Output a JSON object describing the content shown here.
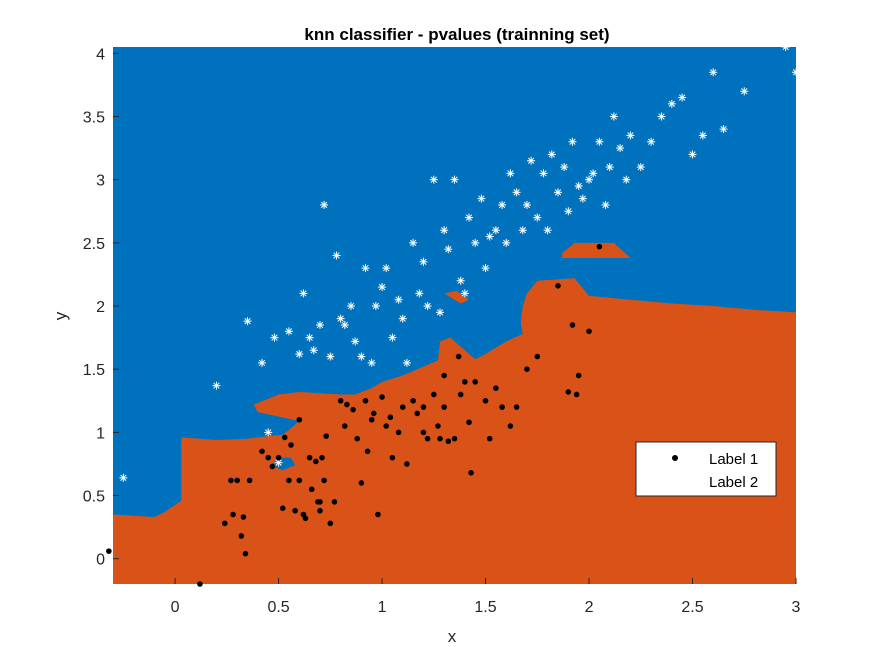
{
  "chart_data": {
    "type": "scatter",
    "title": "knn classifier - pvalues (trainning set)",
    "xlabel": "x",
    "ylabel": "y",
    "xlim": [
      -0.3,
      3.0
    ],
    "ylim": [
      -0.2,
      4.05
    ],
    "xticks": [
      "0",
      "0.5",
      "1",
      "1.5",
      "2",
      "2.5",
      "3"
    ],
    "yticks": [
      "0",
      "0.5",
      "1",
      "1.5",
      "2",
      "2.5",
      "3",
      "3.5",
      "4"
    ],
    "grid": false,
    "legend_position": "right",
    "region_colors": {
      "label_1": "#D95319",
      "label_2": "#0072BD"
    },
    "decision_boundary_label1_region": [
      [
        -0.3,
        0.35
      ],
      [
        -0.1,
        0.33
      ],
      [
        -0.05,
        0.37
      ],
      [
        0.03,
        0.46
      ],
      [
        0.03,
        0.96
      ],
      [
        0.2,
        0.94
      ],
      [
        0.35,
        0.95
      ],
      [
        0.45,
        0.97
      ],
      [
        0.52,
        0.98
      ],
      [
        0.55,
        1.02
      ],
      [
        0.6,
        1.09
      ],
      [
        0.4,
        1.16
      ],
      [
        0.38,
        1.22
      ],
      [
        0.5,
        1.3
      ],
      [
        0.6,
        1.32
      ],
      [
        0.8,
        1.3
      ],
      [
        0.87,
        1.3
      ],
      [
        0.95,
        1.35
      ],
      [
        1.0,
        1.4
      ],
      [
        1.1,
        1.45
      ],
      [
        1.2,
        1.52
      ],
      [
        1.27,
        1.57
      ],
      [
        1.28,
        1.72
      ],
      [
        1.33,
        1.75
      ],
      [
        1.4,
        1.65
      ],
      [
        1.45,
        1.58
      ],
      [
        1.5,
        1.62
      ],
      [
        1.6,
        1.72
      ],
      [
        1.68,
        1.78
      ],
      [
        1.67,
        1.87
      ],
      [
        1.68,
        2.0
      ],
      [
        1.7,
        2.1
      ],
      [
        1.75,
        2.2
      ],
      [
        1.93,
        2.22
      ],
      [
        2.0,
        2.08
      ],
      [
        2.2,
        2.05
      ],
      [
        2.4,
        2.02
      ],
      [
        2.6,
        2.0
      ],
      [
        2.8,
        1.97
      ],
      [
        3.0,
        1.95
      ],
      [
        3.0,
        -0.2
      ],
      [
        -0.3,
        -0.2
      ]
    ],
    "series": [
      {
        "name": "Label 1",
        "marker": "dot",
        "color": "#000000",
        "x": [
          -0.32,
          0.12,
          0.24,
          0.27,
          0.28,
          0.3,
          0.32,
          0.33,
          0.34,
          0.36,
          0.42,
          0.45,
          0.47,
          0.5,
          0.52,
          0.53,
          0.55,
          0.56,
          0.58,
          0.6,
          0.6,
          0.62,
          0.63,
          0.65,
          0.66,
          0.68,
          0.69,
          0.7,
          0.7,
          0.71,
          0.72,
          0.73,
          0.75,
          0.77,
          0.8,
          0.82,
          0.83,
          0.86,
          0.88,
          0.9,
          0.92,
          0.93,
          0.95,
          0.96,
          0.98,
          1.0,
          1.02,
          1.04,
          1.05,
          1.08,
          1.1,
          1.12,
          1.15,
          1.17,
          1.2,
          1.2,
          1.22,
          1.25,
          1.27,
          1.28,
          1.3,
          1.3,
          1.32,
          1.35,
          1.37,
          1.38,
          1.4,
          1.42,
          1.43,
          1.45,
          1.5,
          1.52,
          1.55,
          1.58,
          1.62,
          1.65,
          1.7,
          1.75,
          1.85,
          1.9,
          1.92,
          1.94,
          1.95,
          2.0,
          2.05
        ],
        "y": [
          0.06,
          -0.2,
          0.28,
          0.62,
          0.35,
          0.62,
          0.18,
          0.33,
          0.04,
          0.62,
          0.85,
          0.8,
          0.73,
          0.8,
          0.4,
          0.96,
          0.62,
          0.9,
          0.38,
          0.62,
          1.1,
          0.35,
          0.32,
          0.8,
          0.55,
          0.77,
          0.45,
          0.38,
          0.45,
          0.8,
          0.62,
          0.97,
          0.28,
          0.45,
          1.25,
          1.05,
          1.22,
          1.18,
          0.95,
          0.6,
          1.25,
          0.85,
          1.1,
          1.15,
          0.35,
          1.28,
          1.05,
          1.12,
          0.8,
          1.0,
          1.2,
          0.75,
          1.25,
          1.15,
          1.0,
          1.2,
          0.95,
          1.3,
          1.05,
          0.95,
          1.45,
          1.2,
          0.93,
          0.95,
          1.6,
          1.3,
          1.4,
          1.08,
          0.68,
          1.4,
          1.25,
          0.95,
          1.35,
          1.2,
          1.05,
          1.2,
          1.5,
          1.6,
          2.16,
          1.32,
          1.85,
          1.3,
          1.45,
          1.8,
          2.47
        ]
      },
      {
        "name": "Label 2",
        "marker": "asterisk",
        "color": "#ffffff",
        "x": [
          -0.25,
          0.2,
          0.35,
          0.42,
          0.45,
          0.48,
          0.5,
          0.55,
          0.6,
          0.62,
          0.65,
          0.67,
          0.7,
          0.72,
          0.75,
          0.78,
          0.8,
          0.82,
          0.85,
          0.87,
          0.9,
          0.92,
          0.95,
          0.97,
          1.0,
          1.02,
          1.05,
          1.08,
          1.1,
          1.12,
          1.15,
          1.18,
          1.2,
          1.22,
          1.25,
          1.28,
          1.3,
          1.32,
          1.35,
          1.38,
          1.4,
          1.42,
          1.45,
          1.48,
          1.5,
          1.52,
          1.55,
          1.58,
          1.6,
          1.62,
          1.65,
          1.68,
          1.7,
          1.72,
          1.75,
          1.78,
          1.8,
          1.82,
          1.85,
          1.88,
          1.9,
          1.92,
          1.95,
          1.97,
          2.0,
          2.02,
          2.05,
          2.08,
          2.1,
          2.12,
          2.15,
          2.18,
          2.2,
          2.25,
          2.3,
          2.35,
          2.4,
          2.45,
          2.5,
          2.55,
          2.6,
          2.65,
          2.75,
          2.95,
          3.0
        ],
        "y": [
          0.64,
          1.37,
          1.88,
          1.55,
          1.0,
          1.75,
          0.76,
          1.8,
          1.62,
          2.1,
          1.75,
          1.65,
          1.85,
          2.8,
          1.6,
          2.4,
          1.9,
          1.85,
          2.0,
          1.72,
          1.6,
          2.3,
          1.55,
          2.0,
          2.15,
          2.3,
          1.75,
          2.05,
          1.9,
          1.55,
          2.5,
          2.1,
          2.35,
          2.0,
          3.0,
          1.95,
          2.6,
          2.45,
          3.0,
          2.2,
          2.1,
          2.7,
          2.5,
          2.85,
          2.3,
          2.55,
          2.6,
          2.8,
          2.5,
          3.05,
          2.9,
          2.6,
          2.8,
          3.15,
          2.7,
          3.05,
          2.6,
          3.2,
          2.9,
          3.1,
          2.75,
          3.3,
          2.95,
          2.85,
          3.0,
          3.05,
          3.3,
          2.8,
          3.1,
          3.5,
          3.25,
          3.0,
          3.35,
          3.1,
          3.3,
          3.5,
          3.6,
          3.65,
          3.2,
          3.35,
          3.85,
          3.4,
          3.7,
          4.05,
          3.85
        ]
      }
    ]
  }
}
